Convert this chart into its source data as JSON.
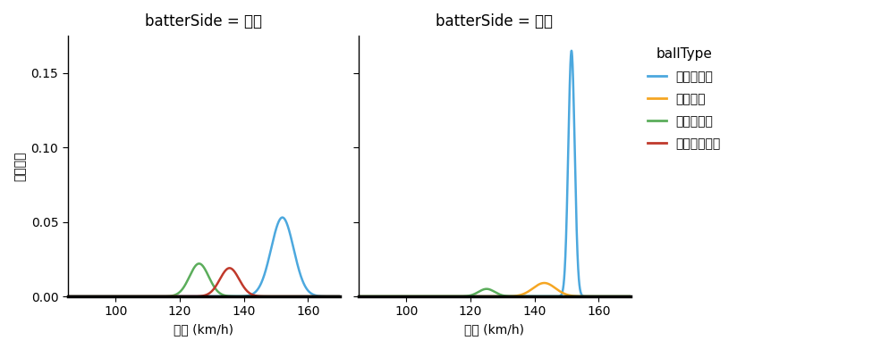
{
  "title_right": "batterSide = 右打",
  "title_left": "batterSide = 左打",
  "xlabel": "球速 (km/h)",
  "ylabel": "確率密度",
  "legend_title": "ballType",
  "legend_labels": [
    "ストレート",
    "シンカー",
    "スライダー",
    "カットボール"
  ],
  "colors": [
    "#4CA8DE",
    "#F5A623",
    "#5BAD5B",
    "#C0392B"
  ],
  "xmin": 85,
  "xmax": 170,
  "xticks": [
    100,
    120,
    140,
    160
  ],
  "ylim": [
    0,
    0.175
  ],
  "yticks": [
    0.0,
    0.05,
    0.1,
    0.15
  ],
  "right": {
    "straight": {
      "mean": 152.0,
      "std": 3.5,
      "peak": 0.053
    },
    "sinker": {
      "mean": 0,
      "std": 0,
      "peak": 0
    },
    "slider": {
      "mean": 126.0,
      "std": 3.0,
      "peak": 0.022
    },
    "cutter": {
      "mean": 135.5,
      "std": 3.0,
      "peak": 0.019
    }
  },
  "left": {
    "straight": {
      "mean": 151.5,
      "std": 1.0,
      "peak": 0.165
    },
    "sinker": {
      "mean": 143.0,
      "std": 3.5,
      "peak": 0.009
    },
    "slider": {
      "mean": 125.0,
      "std": 2.5,
      "peak": 0.005
    },
    "cutter": {
      "mean": 0,
      "std": 0,
      "peak": 0
    }
  }
}
